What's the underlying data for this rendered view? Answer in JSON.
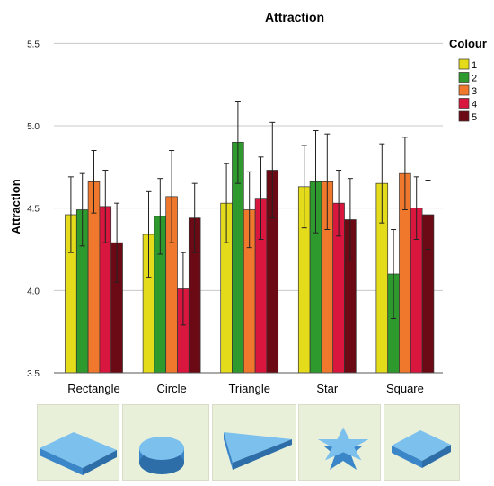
{
  "chart_data": {
    "type": "bar",
    "title": "Attraction",
    "xlabel": "",
    "ylabel": "Attraction",
    "ylim": [
      3.5,
      5.6
    ],
    "yticks": [
      "3.5",
      "4.0",
      "4.5",
      "5.0",
      "5.5"
    ],
    "grid": true,
    "error_bars": true,
    "legend": {
      "title": "Colour",
      "placement": "top-right"
    },
    "categories": [
      "Rectangle",
      "Circle",
      "Triangle",
      "Star",
      "Square"
    ],
    "series": [
      {
        "name": "1",
        "color": "#e4dc1a",
        "values": [
          4.46,
          4.34,
          4.53,
          4.63,
          4.65
        ],
        "err": [
          0.23,
          0.26,
          0.24,
          0.25,
          0.24
        ]
      },
      {
        "name": "2",
        "color": "#2e9a2e",
        "values": [
          4.49,
          4.45,
          4.9,
          4.66,
          4.1
        ],
        "err": [
          0.22,
          0.23,
          0.25,
          0.31,
          0.27
        ]
      },
      {
        "name": "3",
        "color": "#f0782c",
        "values": [
          4.66,
          4.57,
          4.49,
          4.66,
          4.71
        ],
        "err": [
          0.19,
          0.28,
          0.23,
          0.29,
          0.22
        ]
      },
      {
        "name": "4",
        "color": "#d8163e",
        "values": [
          4.51,
          4.01,
          4.56,
          4.53,
          4.5
        ],
        "err": [
          0.22,
          0.22,
          0.25,
          0.2,
          0.19
        ]
      },
      {
        "name": "5",
        "color": "#6b0a14",
        "values": [
          4.29,
          4.44,
          4.73,
          4.43,
          4.46
        ],
        "err": [
          0.24,
          0.21,
          0.29,
          0.25,
          0.21
        ]
      }
    ]
  },
  "shape_images": [
    {
      "name": "rectangle-image"
    },
    {
      "name": "circle-image"
    },
    {
      "name": "triangle-image"
    },
    {
      "name": "star-image"
    },
    {
      "name": "square-image"
    }
  ]
}
